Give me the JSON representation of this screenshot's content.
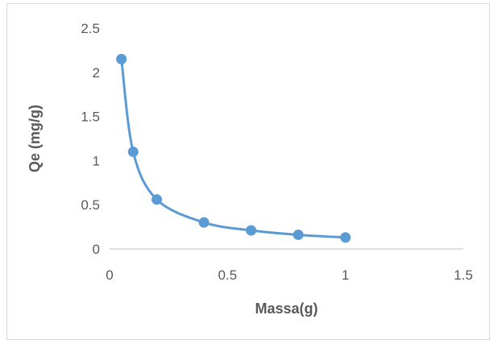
{
  "chart_data": {
    "type": "scatter",
    "title": "",
    "xlabel": "Massa(g)",
    "ylabel": "Qe (mg/g)",
    "xlim": [
      0,
      1.5
    ],
    "ylim": [
      0,
      2.5
    ],
    "x_ticks": [
      "0",
      "0.5",
      "1",
      "1.5"
    ],
    "y_ticks": [
      "0",
      "0.5",
      "1",
      "1.5",
      "2",
      "2.5"
    ],
    "x_tick_values": [
      0,
      0.5,
      1,
      1.5
    ],
    "y_tick_values": [
      0,
      0.5,
      1,
      1.5,
      2,
      2.5
    ],
    "grid": false,
    "legend": "none",
    "series": [
      {
        "color": "#5b9bd5",
        "style": "smooth-line-with-markers",
        "x": [
          0.05,
          0.1,
          0.2,
          0.4,
          0.6,
          0.8,
          1.0
        ],
        "y": [
          2.15,
          1.1,
          0.56,
          0.3,
          0.21,
          0.16,
          0.13
        ]
      }
    ],
    "axis_color": "#bfbfbf"
  }
}
